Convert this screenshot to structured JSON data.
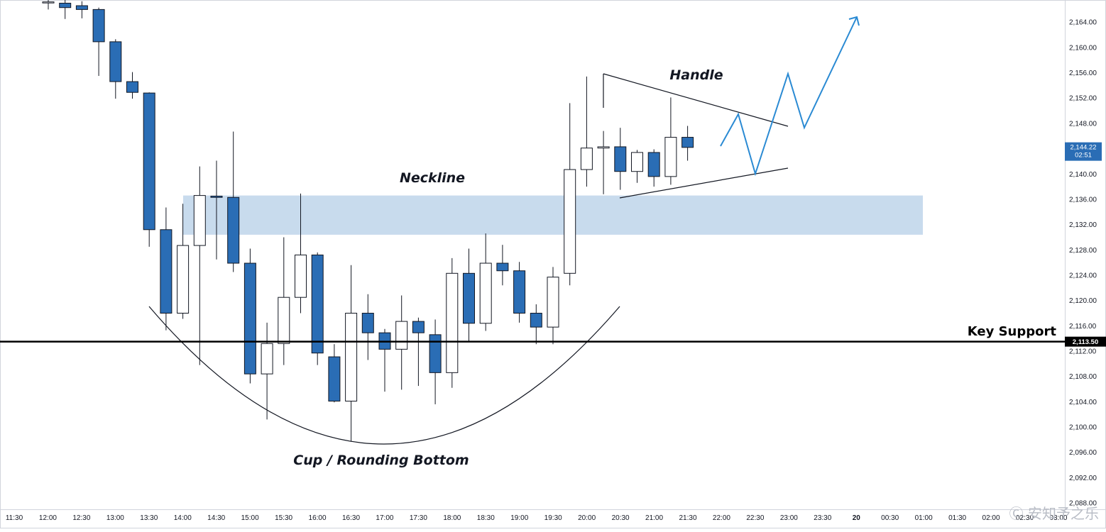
{
  "chart_data": {
    "type": "candlestick",
    "y_ticks": [
      2164,
      2160,
      2156,
      2152,
      2148,
      2144,
      2140,
      2136,
      2132,
      2128,
      2124,
      2120,
      2116,
      2112,
      2108,
      2104,
      2100,
      2096,
      2092,
      2088
    ],
    "ylim": [
      2087,
      2167.5
    ],
    "x_labels": [
      "11:30",
      "12:00",
      "12:30",
      "13:00",
      "13:30",
      "14:00",
      "14:30",
      "15:00",
      "15:30",
      "16:00",
      "16:30",
      "17:00",
      "17:30",
      "18:00",
      "18:30",
      "19:00",
      "19:30",
      "20:00",
      "20:30",
      "21:00",
      "21:30",
      "22:00",
      "22:30",
      "23:00",
      "23:30",
      "20",
      "00:30",
      "01:00",
      "01:30",
      "02:00",
      "02:30",
      "03:00"
    ],
    "candles": [
      {
        "t": "12:00",
        "o": 2167.2,
        "h": 2167.5,
        "l": 2166.0,
        "c": 2167.2
      },
      {
        "t": "12:15",
        "o": 2167.0,
        "h": 2167.5,
        "l": 2164.5,
        "c": 2166.3
      },
      {
        "t": "12:30",
        "o": 2166.6,
        "h": 2167.3,
        "l": 2164.6,
        "c": 2166.0
      },
      {
        "t": "12:45",
        "o": 2166.0,
        "h": 2166.3,
        "l": 2155.5,
        "c": 2160.9
      },
      {
        "t": "13:00",
        "o": 2160.9,
        "h": 2161.3,
        "l": 2151.9,
        "c": 2154.6
      },
      {
        "t": "13:15",
        "o": 2154.6,
        "h": 2156.1,
        "l": 2151.9,
        "c": 2152.9
      },
      {
        "t": "13:30",
        "o": 2152.8,
        "h": 2152.9,
        "l": 2128.5,
        "c": 2131.2
      },
      {
        "t": "13:45",
        "o": 2131.2,
        "h": 2134.7,
        "l": 2115.3,
        "c": 2118.0
      },
      {
        "t": "14:00",
        "o": 2118.0,
        "h": 2135.3,
        "l": 2117.1,
        "c": 2128.7
      },
      {
        "t": "14:15",
        "o": 2128.7,
        "h": 2141.2,
        "l": 2109.8,
        "c": 2136.6
      },
      {
        "t": "14:30",
        "o": 2136.5,
        "h": 2142.1,
        "l": 2126.5,
        "c": 2136.3
      },
      {
        "t": "14:45",
        "o": 2136.3,
        "h": 2146.7,
        "l": 2124.5,
        "c": 2125.9
      },
      {
        "t": "15:00",
        "o": 2125.9,
        "h": 2128.2,
        "l": 2106.9,
        "c": 2108.4
      },
      {
        "t": "15:15",
        "o": 2108.4,
        "h": 2116.5,
        "l": 2101.2,
        "c": 2113.2
      },
      {
        "t": "15:30",
        "o": 2113.2,
        "h": 2130.0,
        "l": 2109.8,
        "c": 2120.5
      },
      {
        "t": "15:45",
        "o": 2120.5,
        "h": 2136.9,
        "l": 2118.0,
        "c": 2127.2
      },
      {
        "t": "16:00",
        "o": 2127.2,
        "h": 2127.6,
        "l": 2109.8,
        "c": 2111.7
      },
      {
        "t": "16:15",
        "o": 2111.1,
        "h": 2113.1,
        "l": 2103.9,
        "c": 2104.1
      },
      {
        "t": "16:30",
        "o": 2104.1,
        "h": 2125.6,
        "l": 2097.7,
        "c": 2118.0
      },
      {
        "t": "16:45",
        "o": 2118.0,
        "h": 2121.0,
        "l": 2110.6,
        "c": 2114.9
      },
      {
        "t": "17:00",
        "o": 2114.9,
        "h": 2115.5,
        "l": 2105.6,
        "c": 2112.3
      },
      {
        "t": "17:15",
        "o": 2112.3,
        "h": 2120.8,
        "l": 2105.9,
        "c": 2116.7
      },
      {
        "t": "17:30",
        "o": 2116.7,
        "h": 2117.3,
        "l": 2106.5,
        "c": 2114.9
      },
      {
        "t": "17:45",
        "o": 2114.6,
        "h": 2117.0,
        "l": 2103.6,
        "c": 2108.6
      },
      {
        "t": "18:00",
        "o": 2108.6,
        "h": 2126.7,
        "l": 2106.2,
        "c": 2124.3
      },
      {
        "t": "18:15",
        "o": 2124.3,
        "h": 2128.2,
        "l": 2113.4,
        "c": 2116.4
      },
      {
        "t": "18:30",
        "o": 2116.4,
        "h": 2130.6,
        "l": 2115.2,
        "c": 2125.9
      },
      {
        "t": "18:45",
        "o": 2125.9,
        "h": 2128.8,
        "l": 2122.4,
        "c": 2124.7
      },
      {
        "t": "19:00",
        "o": 2124.7,
        "h": 2126.1,
        "l": 2116.5,
        "c": 2118.0
      },
      {
        "t": "19:15",
        "o": 2118.0,
        "h": 2119.4,
        "l": 2113.1,
        "c": 2115.8
      },
      {
        "t": "19:30",
        "o": 2115.8,
        "h": 2125.3,
        "l": 2113.1,
        "c": 2123.7
      },
      {
        "t": "19:45",
        "o": 2124.3,
        "h": 2151.2,
        "l": 2122.4,
        "c": 2140.7
      },
      {
        "t": "20:00",
        "o": 2140.7,
        "h": 2155.4,
        "l": 2138.0,
        "c": 2144.1
      },
      {
        "t": "20:15",
        "o": 2144.1,
        "h": 2146.8,
        "l": 2136.8,
        "c": 2144.3
      },
      {
        "t": "20:30",
        "o": 2144.3,
        "h": 2147.3,
        "l": 2137.5,
        "c": 2140.4
      },
      {
        "t": "20:45",
        "o": 2140.4,
        "h": 2143.8,
        "l": 2138.6,
        "c": 2143.4
      },
      {
        "t": "21:00",
        "o": 2143.4,
        "h": 2143.9,
        "l": 2138.0,
        "c": 2139.6
      },
      {
        "t": "21:15",
        "o": 2139.6,
        "h": 2152.1,
        "l": 2138.3,
        "c": 2145.8
      },
      {
        "t": "21:30",
        "o": 2145.8,
        "h": 2147.6,
        "l": 2142.1,
        "c": 2144.2
      }
    ],
    "key_support": {
      "label": "Key Support",
      "price": "2,113.50",
      "value": 2113.5
    },
    "neckline": {
      "label": "Neckline",
      "y_range": [
        2130.4,
        2136.6
      ]
    },
    "cup_label": "Cup / Rounding Bottom",
    "handle_label": "Handle",
    "last_price": {
      "price": "2,144.22",
      "countdown": "02:51",
      "value": 2144.22
    },
    "colors": {
      "bear": "#2a6db5",
      "bull": "#ffffff",
      "border": "#131722",
      "zone": "#c5d9ec",
      "projection": "#2a8ad3",
      "axis_bg": "#ffffff"
    }
  },
  "watermark": "Ⓒ 安知予之乐"
}
